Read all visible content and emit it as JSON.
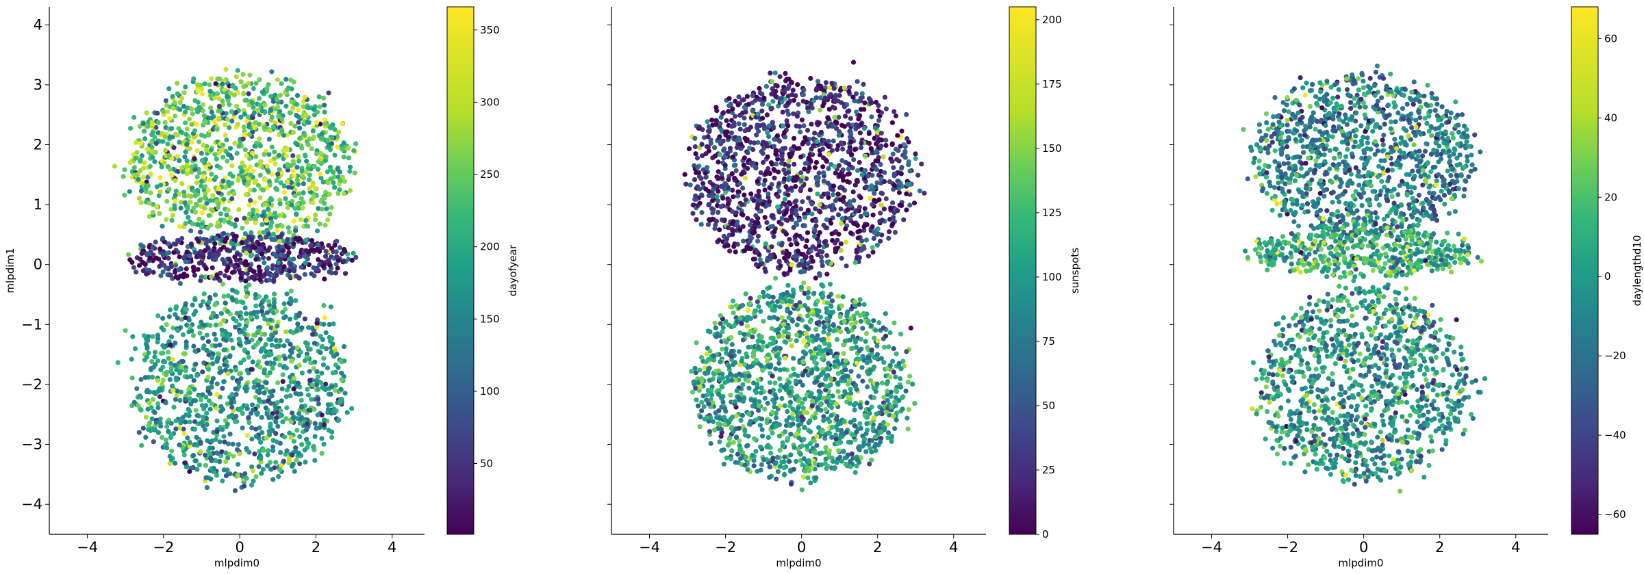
{
  "chart_data": [
    {
      "type": "scatter",
      "title": "",
      "xlabel": "mlpdim0",
      "ylabel": "mlpdim1",
      "xlim": [
        -5.0,
        4.85
      ],
      "ylim": [
        -4.5,
        4.3
      ],
      "xticks": [
        -4,
        -2,
        0,
        2,
        4
      ],
      "yticks": [
        -4,
        -3,
        -2,
        -1,
        0,
        1,
        2,
        3,
        4
      ],
      "colormap": "viridis",
      "colorbar": {
        "label": "dayofyear",
        "min": 1,
        "max": 366,
        "ticks": [
          50,
          100,
          150,
          200,
          250,
          300,
          350
        ]
      },
      "grid": false,
      "point_cloud": {
        "upper_lobe": {
          "center": [
            0.0,
            1.7
          ],
          "extent": [
            3.2,
            1.6
          ],
          "typical_color_value": 270
        },
        "central_band": {
          "center": [
            0.0,
            0.1
          ],
          "extent": [
            3.3,
            0.45
          ],
          "typical_color_value": 40
        },
        "lower_lobe": {
          "center": [
            0.0,
            -2.0
          ],
          "extent": [
            3.1,
            1.8
          ],
          "typical_color_value": 200
        }
      }
    },
    {
      "type": "scatter",
      "title": "",
      "xlabel": "mlpdim0",
      "ylabel": "",
      "xlim": [
        -5.0,
        4.85
      ],
      "ylim": [
        -4.5,
        4.3
      ],
      "xticks": [
        -4,
        -2,
        0,
        2,
        4
      ],
      "yticks": [
        -4,
        -3,
        -2,
        -1,
        0,
        1,
        2,
        3,
        4
      ],
      "colormap": "viridis",
      "colorbar": {
        "label": "sunspots",
        "min": 0,
        "max": 205,
        "ticks": [
          0,
          25,
          50,
          75,
          100,
          125,
          150,
          175,
          200
        ]
      },
      "grid": false,
      "point_cloud": {
        "upper_lobe": {
          "center": [
            0.0,
            1.5
          ],
          "extent": [
            3.3,
            1.8
          ],
          "typical_color_value": 20
        },
        "lower_lobe": {
          "center": [
            0.0,
            -2.0
          ],
          "extent": [
            3.1,
            1.8
          ],
          "typical_color_value": 115
        }
      }
    },
    {
      "type": "scatter",
      "title": "",
      "xlabel": "mlpdim0",
      "ylabel": "",
      "xlim": [
        -5.0,
        4.85
      ],
      "ylim": [
        -4.5,
        4.3
      ],
      "xticks": [
        -4,
        -2,
        0,
        2,
        4
      ],
      "yticks": [
        -4,
        -3,
        -2,
        -1,
        0,
        1,
        2,
        3,
        4
      ],
      "colormap": "viridis",
      "colorbar": {
        "label": "daylengthd10",
        "min": -65,
        "max": 68,
        "ticks": [
          -60,
          -40,
          -20,
          0,
          20,
          40,
          60
        ]
      },
      "grid": false,
      "point_cloud": {
        "upper_lobe": {
          "center": [
            0.0,
            1.8
          ],
          "extent": [
            3.2,
            1.5
          ],
          "typical_color_value": -8
        },
        "central_band": {
          "center": [
            0.0,
            0.2
          ],
          "extent": [
            3.3,
            0.45
          ],
          "typical_color_value": 18
        },
        "lower_lobe": {
          "center": [
            0.0,
            -2.0
          ],
          "extent": [
            3.1,
            1.8
          ],
          "typical_color_value": 5
        }
      }
    }
  ]
}
